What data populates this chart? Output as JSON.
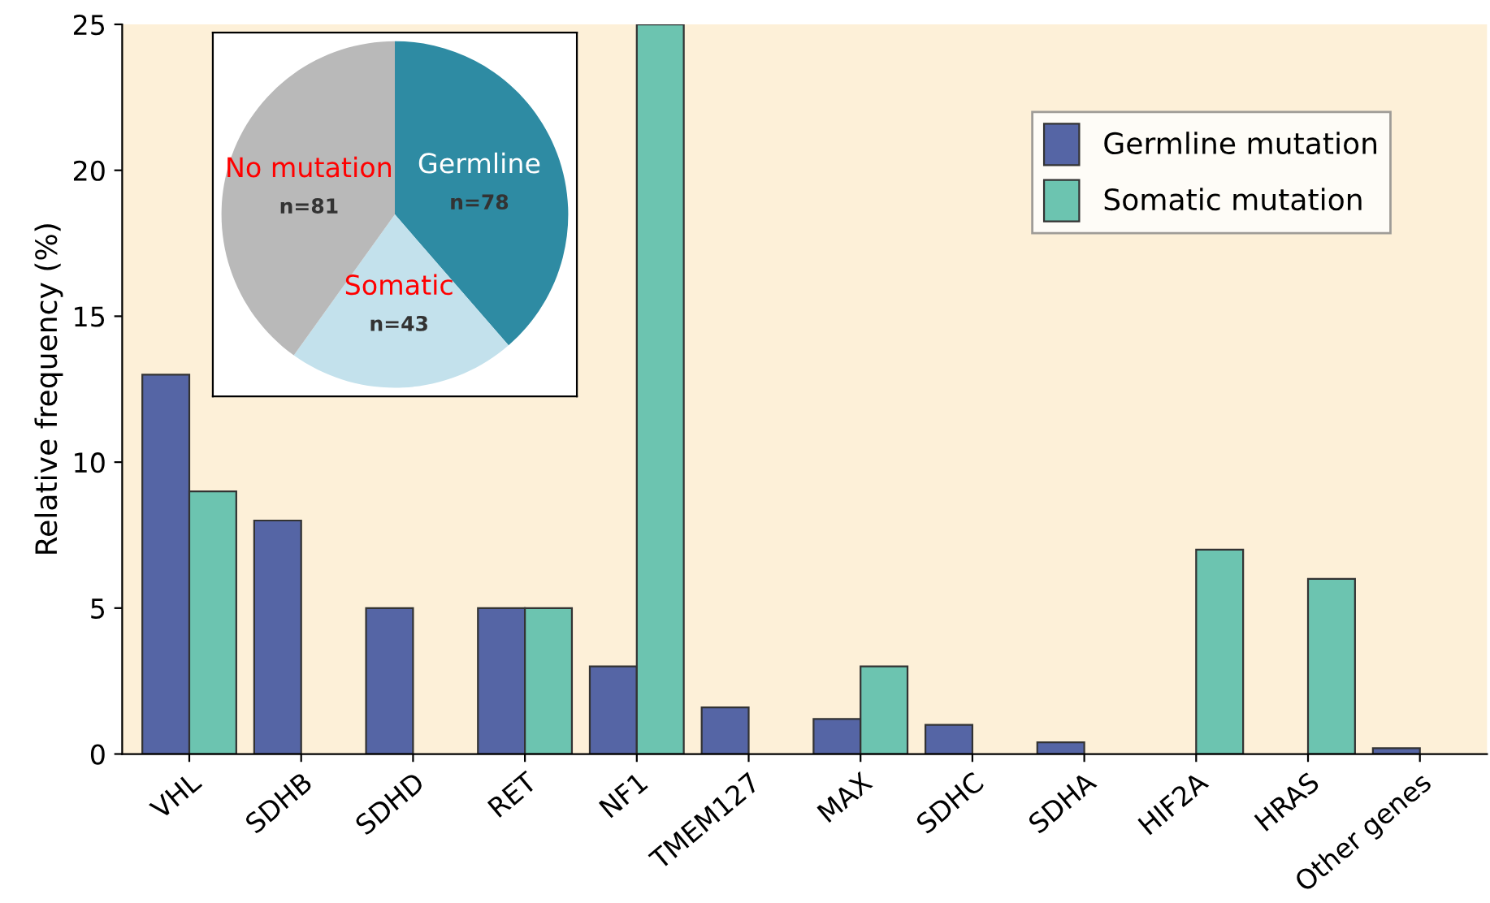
{
  "chart_data": [
    {
      "type": "bar",
      "ylabel": "Relative frequency (%)",
      "categories": [
        "VHL",
        "SDHB",
        "SDHD",
        "RET",
        "NF1",
        "TMEM127",
        "MAX",
        "SDHC",
        "SDHA",
        "HIF2A",
        "HRAS",
        "Other genes"
      ],
      "series": [
        {
          "name": "Germline mutation",
          "color": "#5565a5",
          "values": [
            13,
            8,
            5,
            5,
            3,
            1.6,
            1.2,
            1.0,
            0.4,
            null,
            null,
            0.2
          ]
        },
        {
          "name": "Somatic mutation",
          "color": "#6cc4b0",
          "values": [
            9,
            null,
            null,
            5,
            25,
            null,
            3,
            null,
            null,
            7,
            6,
            null
          ]
        }
      ],
      "ylim": [
        0,
        25
      ],
      "yticks": [
        0,
        5,
        10,
        15,
        20,
        25
      ],
      "grid": false,
      "legend": "top right"
    },
    {
      "type": "pie",
      "categories": [
        "Germline",
        "Somatic",
        "No mutation"
      ],
      "values": [
        78,
        43,
        81
      ],
      "colors": [
        "#2e8ba3",
        "#c3e1ec",
        "#b9b9b9"
      ],
      "value_labels": [
        "n=78",
        "n=43",
        "n=81"
      ]
    }
  ]
}
